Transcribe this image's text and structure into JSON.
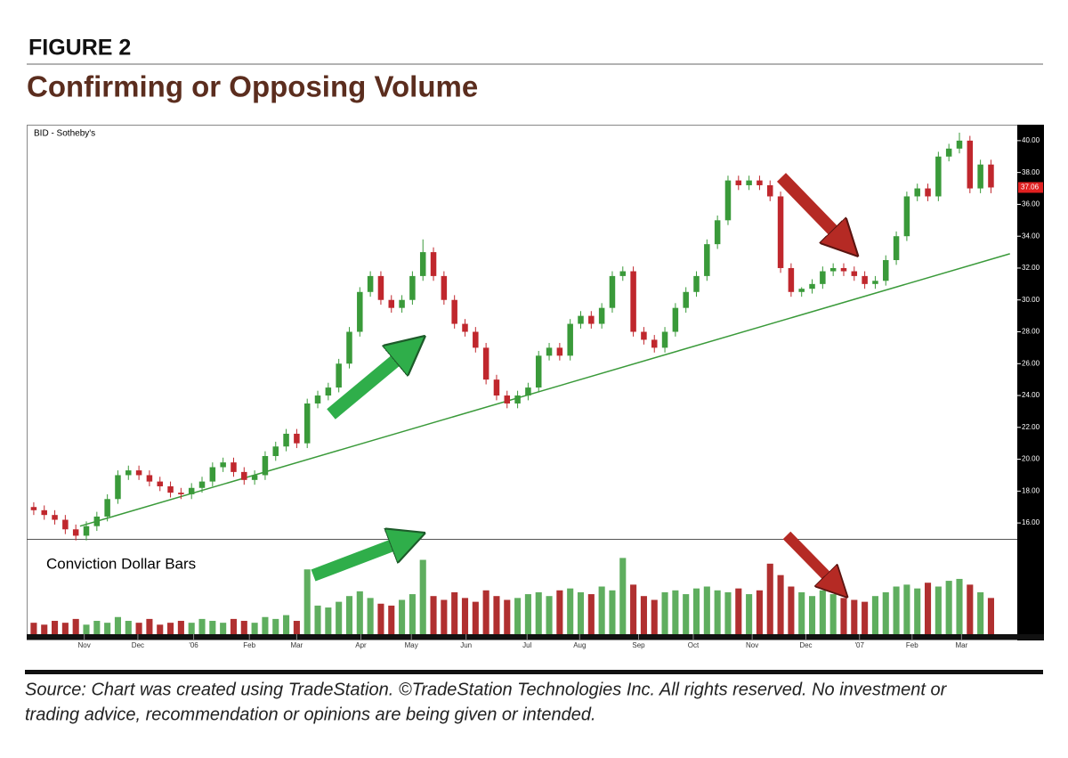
{
  "figure_label": "FIGURE 2",
  "heading": "Confirming or Opposing Volume",
  "source": [
    "Source: Chart was created using TradeStation. ©TradeStation Technologies Inc. All rights reserved. No investment or",
    "trading advice, recommendation or opinions are being given or intended."
  ],
  "chart_data": [
    {
      "type": "candlestick",
      "title": "BID - Sotheby's",
      "up_color": "#3a9a3a",
      "down_color": "#c0272d",
      "xlim": [
        -0.5,
        93.5
      ],
      "ylim": [
        15,
        41
      ],
      "yticks": [
        {
          "value": 16,
          "label": "16.00"
        },
        {
          "value": 18,
          "label": "18.00"
        },
        {
          "value": 20,
          "label": "20.00"
        },
        {
          "value": 22,
          "label": "22.00"
        },
        {
          "value": 24,
          "label": "24.00"
        },
        {
          "value": 26,
          "label": "26.00"
        },
        {
          "value": 28,
          "label": "28.00"
        },
        {
          "value": 30,
          "label": "30.00"
        },
        {
          "value": 32,
          "label": "32.00"
        },
        {
          "value": 34,
          "label": "34.00"
        },
        {
          "value": 36,
          "label": "36.00"
        },
        {
          "value": 38,
          "label": "38.00"
        },
        {
          "value": 40,
          "label": "40.00"
        }
      ],
      "open": [
        17.0,
        16.8,
        16.5,
        16.2,
        15.6,
        15.2,
        15.8,
        16.4,
        17.5,
        19.0,
        19.3,
        19.0,
        18.6,
        18.3,
        17.9,
        17.8,
        18.2,
        18.6,
        19.5,
        19.8,
        19.2,
        18.7,
        19.0,
        20.2,
        20.8,
        21.6,
        21.0,
        23.5,
        24.0,
        24.5,
        26.0,
        28.0,
        30.5,
        31.5,
        30.0,
        29.5,
        30.0,
        31.5,
        33.0,
        31.5,
        30.0,
        28.5,
        28.0,
        27.0,
        25.0,
        24.0,
        23.5,
        24.0,
        24.5,
        26.5,
        27.0,
        26.5,
        28.5,
        29.0,
        28.5,
        29.5,
        31.5,
        31.8,
        28.0,
        27.5,
        27.0,
        28.0,
        29.5,
        30.5,
        31.5,
        33.5,
        35.0,
        37.5,
        37.2,
        37.5,
        37.2,
        36.5,
        32.0,
        30.5,
        30.7,
        31.0,
        31.8,
        32.0,
        31.8,
        31.5,
        31.0,
        31.2,
        32.5,
        34.0,
        36.5,
        37.0,
        36.5,
        39.0,
        39.5,
        40.0,
        37.0,
        38.5
      ],
      "high": [
        17.3,
        17.1,
        16.8,
        16.5,
        15.9,
        16.1,
        16.7,
        17.8,
        19.3,
        19.6,
        19.6,
        19.3,
        18.9,
        18.6,
        18.2,
        18.5,
        18.9,
        19.8,
        20.1,
        20.1,
        19.5,
        19.3,
        20.5,
        21.1,
        21.9,
        21.9,
        23.8,
        24.3,
        24.8,
        26.3,
        28.3,
        30.8,
        31.8,
        31.8,
        30.3,
        30.3,
        31.8,
        33.8,
        33.3,
        31.8,
        30.3,
        28.8,
        28.3,
        27.3,
        25.3,
        24.3,
        24.3,
        24.8,
        26.8,
        27.3,
        27.3,
        28.8,
        29.3,
        29.3,
        29.8,
        31.8,
        32.1,
        32.1,
        28.3,
        27.8,
        28.3,
        29.8,
        30.8,
        31.8,
        33.8,
        35.3,
        37.8,
        37.8,
        37.8,
        37.8,
        37.5,
        36.8,
        32.3,
        30.8,
        31.3,
        32.1,
        32.3,
        32.3,
        32.1,
        31.8,
        31.5,
        32.8,
        34.3,
        36.8,
        37.3,
        37.3,
        39.3,
        39.8,
        40.5,
        40.3,
        38.8,
        38.8
      ],
      "low": [
        16.5,
        16.2,
        15.9,
        15.3,
        14.9,
        14.9,
        15.5,
        16.1,
        17.2,
        18.7,
        18.7,
        18.3,
        18.0,
        17.6,
        17.5,
        17.5,
        17.9,
        18.3,
        19.2,
        18.9,
        18.4,
        18.4,
        18.7,
        19.9,
        20.5,
        20.7,
        20.7,
        23.2,
        23.7,
        24.2,
        25.7,
        27.7,
        30.2,
        29.7,
        29.2,
        29.2,
        29.7,
        31.2,
        31.2,
        29.7,
        28.2,
        27.7,
        26.7,
        24.7,
        23.7,
        23.2,
        23.2,
        23.7,
        24.2,
        26.2,
        26.2,
        26.2,
        28.2,
        28.2,
        28.2,
        29.2,
        31.2,
        27.7,
        27.2,
        26.7,
        26.7,
        27.7,
        29.2,
        30.2,
        31.2,
        33.2,
        34.7,
        36.9,
        36.9,
        36.9,
        36.2,
        31.7,
        30.2,
        30.2,
        30.4,
        30.7,
        31.5,
        31.5,
        31.2,
        30.7,
        30.7,
        30.9,
        32.2,
        33.7,
        36.2,
        36.2,
        36.2,
        38.7,
        39.2,
        36.7,
        36.7,
        36.7
      ],
      "close": [
        16.8,
        16.5,
        16.2,
        15.6,
        15.2,
        15.8,
        16.4,
        17.5,
        19.0,
        19.3,
        19.0,
        18.6,
        18.3,
        17.9,
        17.8,
        18.2,
        18.6,
        19.5,
        19.8,
        19.2,
        18.7,
        19.0,
        20.2,
        20.8,
        21.6,
        21.0,
        23.5,
        24.0,
        24.5,
        26.0,
        28.0,
        30.5,
        31.5,
        30.0,
        29.5,
        30.0,
        31.5,
        33.0,
        31.5,
        30.0,
        28.5,
        28.0,
        27.0,
        25.0,
        24.0,
        23.5,
        24.0,
        24.5,
        26.5,
        27.0,
        26.5,
        28.5,
        29.0,
        28.5,
        29.5,
        31.5,
        31.8,
        28.0,
        27.5,
        27.0,
        28.0,
        29.5,
        30.5,
        31.5,
        33.5,
        35.0,
        37.5,
        37.2,
        37.5,
        37.2,
        36.5,
        32.0,
        30.5,
        30.7,
        31.0,
        31.8,
        32.0,
        31.8,
        31.5,
        31.0,
        31.2,
        32.5,
        34.0,
        36.5,
        37.0,
        36.5,
        39.0,
        39.5,
        40.0,
        37.0,
        38.5,
        37.06
      ],
      "trendline": {
        "color": "#3a9a3a",
        "x": [
          4.4,
          92.8
        ],
        "y": [
          15.8,
          32.9
        ]
      }
    },
    {
      "type": "bar",
      "title": "Conviction Dollar Bars",
      "xlim": [
        -0.5,
        93.5
      ],
      "ylim": [
        0,
        100
      ],
      "xticks": [
        {
          "value": 4.8,
          "label": "Nov"
        },
        {
          "value": 9.9,
          "label": "Dec"
        },
        {
          "value": 15.2,
          "label": "'06"
        },
        {
          "value": 20.5,
          "label": "Feb"
        },
        {
          "value": 25.0,
          "label": "Mar"
        },
        {
          "value": 31.1,
          "label": "Apr"
        },
        {
          "value": 35.9,
          "label": "May"
        },
        {
          "value": 41.1,
          "label": "Jun"
        },
        {
          "value": 46.9,
          "label": "Jul"
        },
        {
          "value": 51.9,
          "label": "Aug"
        },
        {
          "value": 57.5,
          "label": "Sep"
        },
        {
          "value": 62.7,
          "label": "Oct"
        },
        {
          "value": 68.3,
          "label": "Nov"
        },
        {
          "value": 73.4,
          "label": "Dec"
        },
        {
          "value": 78.5,
          "label": "'07"
        },
        {
          "value": 83.5,
          "label": "Feb"
        },
        {
          "value": 88.2,
          "label": "Mar"
        }
      ],
      "up_color": "#5fae5f",
      "down_color": "#b03030",
      "values": [
        12,
        10,
        14,
        12,
        16,
        10,
        14,
        12,
        18,
        14,
        12,
        16,
        10,
        12,
        14,
        12,
        16,
        14,
        12,
        16,
        14,
        12,
        18,
        16,
        20,
        14,
        68,
        30,
        28,
        34,
        40,
        45,
        38,
        32,
        30,
        36,
        42,
        78,
        40,
        36,
        44,
        38,
        34,
        46,
        40,
        36,
        38,
        42,
        44,
        40,
        46,
        48,
        44,
        42,
        50,
        46,
        80,
        52,
        40,
        36,
        44,
        46,
        42,
        48,
        50,
        46,
        44,
        48,
        42,
        46,
        74,
        62,
        50,
        44,
        40,
        46,
        42,
        38,
        36,
        34,
        40,
        44,
        50,
        52,
        48,
        54,
        50,
        56,
        58,
        52,
        44,
        38
      ]
    }
  ]
}
